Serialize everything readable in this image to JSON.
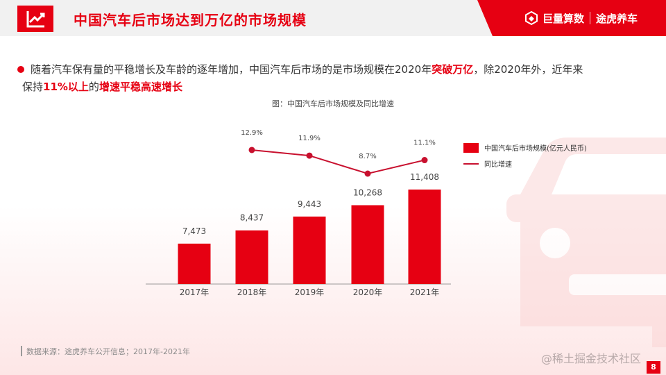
{
  "header": {
    "title": "中国汽车后市场达到万亿的市场规模",
    "logo_left": "巨量算数",
    "logo_right": "途虎养车"
  },
  "bullet": {
    "p1": "随着汽车保有量的平稳增长及车龄的逐年增加，中国汽车后市场的是市场规模在2020年",
    "p1_highlight": "突破万亿",
    "p1_tail": "，除2020年外，近年来",
    "p2_pre": "保持",
    "p2_highlight1": "11%以上",
    "p2_mid": "的",
    "p2_highlight2": "增速平稳高速增长"
  },
  "chart_data": {
    "type": "bar",
    "title": "图：中国汽车后市场规模及同比增速",
    "categories": [
      "2017年",
      "2018年",
      "2019年",
      "2020年",
      "2021年"
    ],
    "series": [
      {
        "name": "中国汽车后市场规模(亿元人民币)",
        "type": "bar",
        "values": [
          7473,
          8437,
          9443,
          10268,
          11408
        ],
        "labels": [
          "7,473",
          "8,437",
          "9,443",
          "10,268",
          "11,408"
        ],
        "color": "#e60012"
      },
      {
        "name": "同比增速",
        "type": "line",
        "values": [
          null,
          12.9,
          11.9,
          8.7,
          11.1
        ],
        "labels": [
          "",
          "12.9%",
          "11.9%",
          "8.7%",
          "11.1%"
        ],
        "color": "#c8102e"
      }
    ],
    "legend_position": "right"
  },
  "footer": {
    "source": "数据来源：途虎养车公开信息；2017年-2021年",
    "watermark": "@稀土掘金技术社区",
    "page": "8"
  }
}
